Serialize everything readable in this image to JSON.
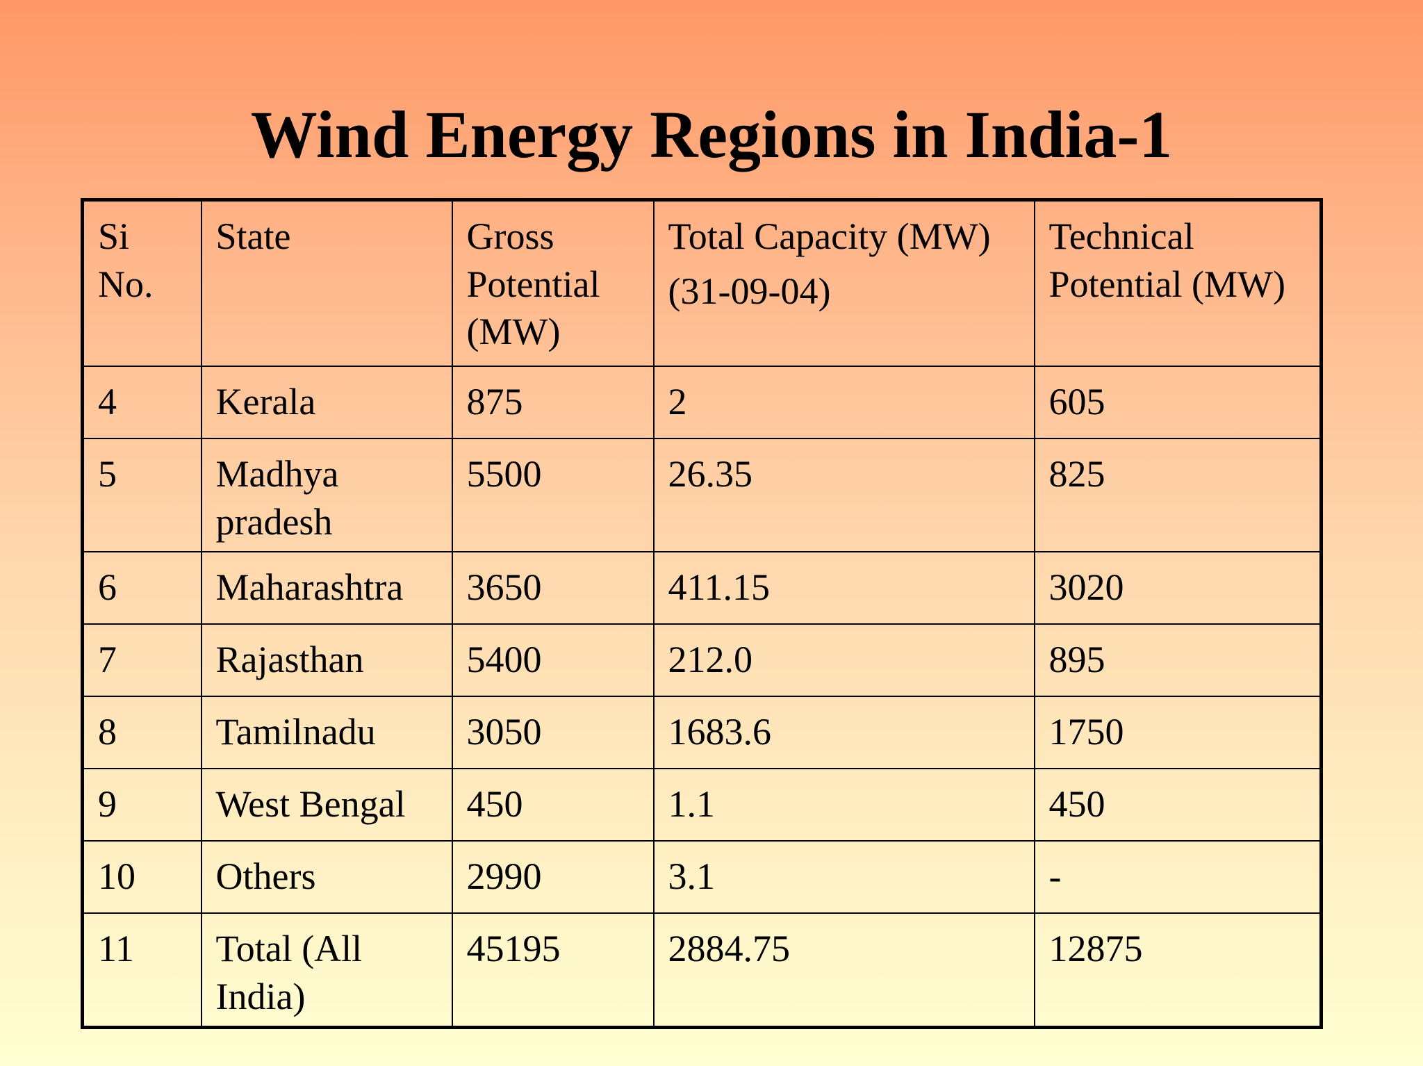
{
  "title": "Wind Energy Regions in India-1",
  "table": {
    "headers": {
      "si_no": "Si No.",
      "state": "State",
      "gross": "Gross Potential (MW)",
      "capacity_line1": "Total Capacity (MW)",
      "capacity_line2": "(31-09-04)",
      "technical": "Technical Potential (MW)"
    },
    "rows": [
      {
        "si": "4",
        "state": "Kerala",
        "gross": "875",
        "capacity": "2",
        "technical": "605"
      },
      {
        "si": "5",
        "state": "Madhya pradesh",
        "gross": "5500",
        "capacity": "26.35",
        "technical": "825"
      },
      {
        "si": "6",
        "state": "Maharashtra",
        "gross": "3650",
        "capacity": "411.15",
        "technical": "3020"
      },
      {
        "si": "7",
        "state": "Rajasthan",
        "gross": "5400",
        "capacity": "212.0",
        "technical": "895"
      },
      {
        "si": "8",
        "state": "Tamilnadu",
        "gross": "3050",
        "capacity": "1683.6",
        "technical": "1750"
      },
      {
        "si": "9",
        "state": "West Bengal",
        "gross": "450",
        "capacity": "1.1",
        "technical": "450"
      },
      {
        "si": "10",
        "state": "Others",
        "gross": "2990",
        "capacity": "3.1",
        "technical": "-"
      },
      {
        "si": "11",
        "state": "Total (All India)",
        "gross": "45195",
        "capacity": "2884.75",
        "technical": "12875"
      }
    ]
  }
}
